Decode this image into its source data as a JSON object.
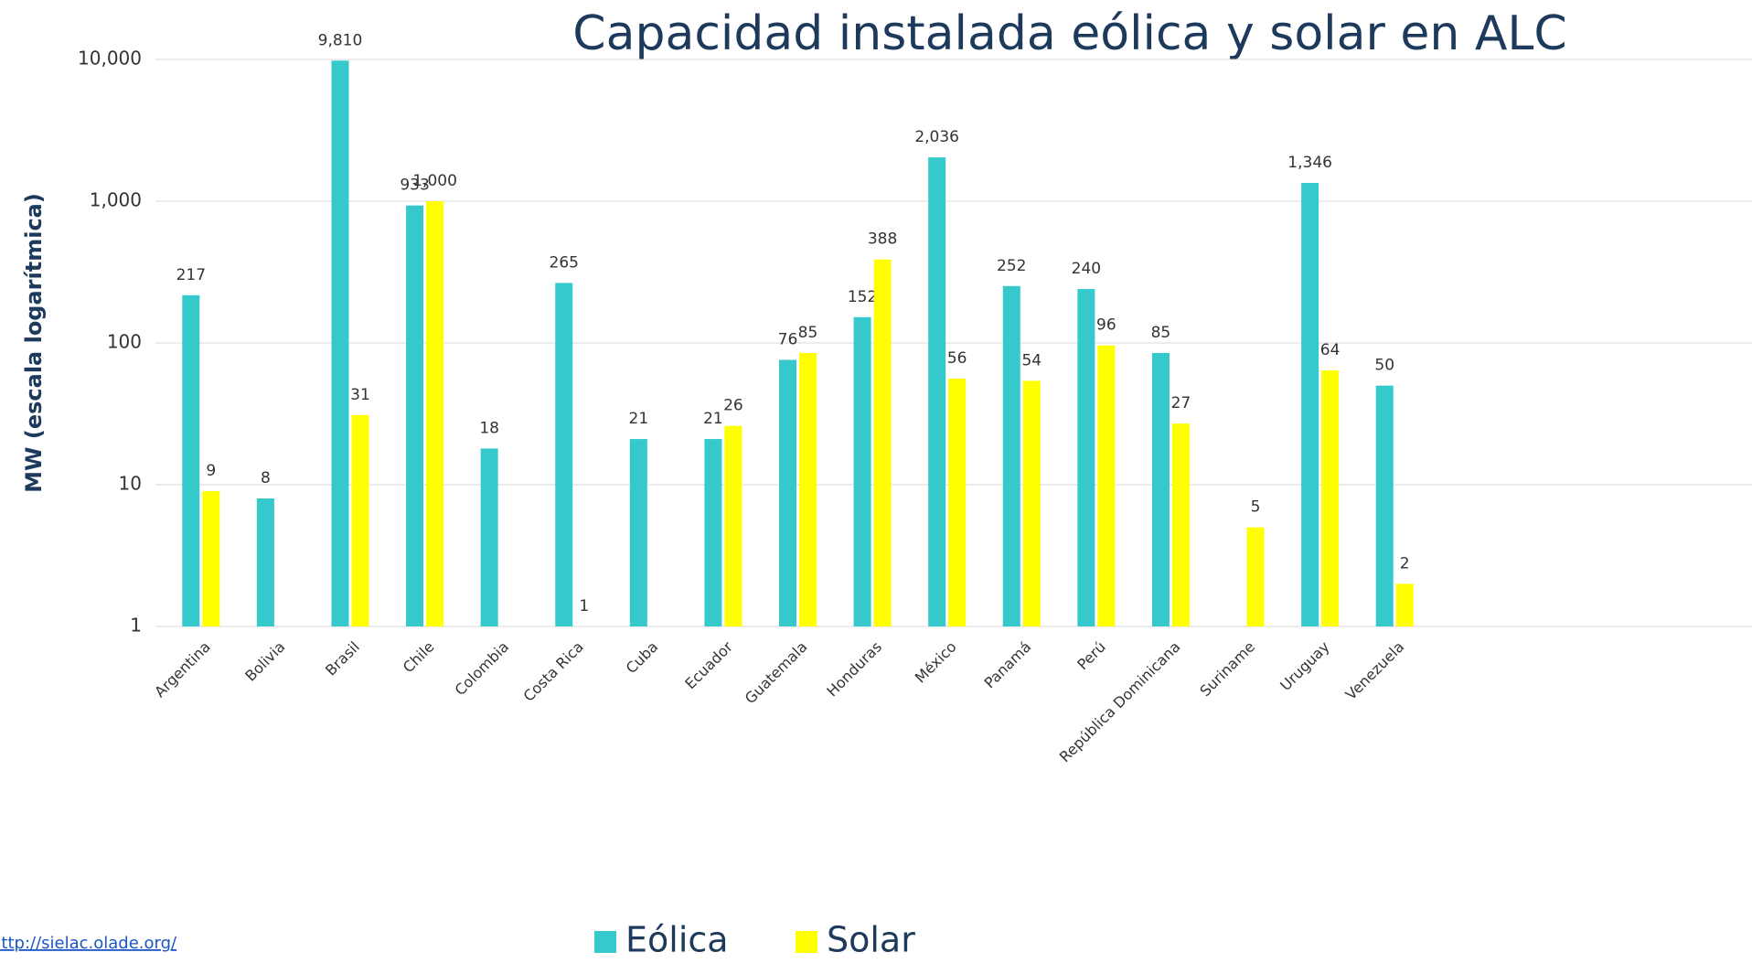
{
  "chart_data": {
    "type": "bar",
    "title": "Capacidad instalada eólica y solar en ALC",
    "y_label": "MW (escala logarítmica)",
    "source": "http://sielac.olade.org/",
    "log_scale": true,
    "grid": true,
    "legend": "bottom",
    "ylim": [
      1,
      10000
    ],
    "yticks": [
      1,
      10,
      100,
      {
        "value": 1000,
        "label": "1,000"
      },
      {
        "value": 10000,
        "label": "10,000"
      }
    ],
    "categories": [
      "Argentina",
      "Bolivia",
      "Brasil",
      "Chile",
      "Colombia",
      "Costa Rica",
      "Cuba",
      "Ecuador",
      "Guatemala",
      "Honduras",
      "México",
      "Panamá",
      "Perú",
      "República Dominicana",
      "Suriname",
      "Uruguay",
      "Venezuela"
    ],
    "series": [
      {
        "name": "Eólica",
        "color": "#36c9cc",
        "values": [
          217,
          8,
          9810,
          933,
          18,
          265,
          21,
          21,
          76,
          152,
          2036,
          252,
          240,
          85,
          null,
          1346,
          50
        ],
        "value_labels": [
          "217",
          "8",
          "9,810",
          "933",
          "18",
          "265",
          "21",
          "21",
          "76",
          "152",
          "2,036",
          "252",
          "240",
          "85",
          null,
          "1,346",
          "50"
        ]
      },
      {
        "name": "Solar",
        "color": "#ffff00",
        "values": [
          9,
          null,
          31,
          1000,
          null,
          1,
          null,
          26,
          85,
          388,
          56,
          54,
          96,
          27,
          5,
          64,
          2
        ],
        "value_labels": [
          "9",
          null,
          "31",
          "1,000",
          null,
          "1",
          null,
          "26",
          "85",
          "388",
          "56",
          "54",
          "96",
          "27",
          "5",
          "64",
          "2"
        ]
      }
    ]
  }
}
